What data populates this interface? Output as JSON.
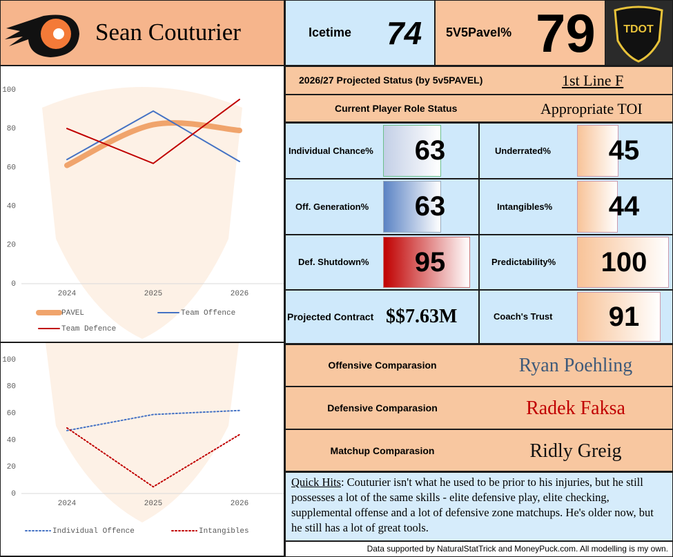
{
  "header": {
    "player": "Sean Couturier",
    "logo_text": "TDOT"
  },
  "icetime": {
    "label": "Icetime",
    "value": 74
  },
  "pavel": {
    "label": "5V5Pavel%",
    "value": 79
  },
  "projected_status": {
    "label": "2026/27 Projected Status (by 5v5PAVEL)",
    "value": "1st Line F"
  },
  "role_status": {
    "label": "Current Player Role Status",
    "value": "Appropriate TOI"
  },
  "metrics": {
    "bar_scale": [
      0,
      100
    ],
    "items": [
      {
        "label": "Individual Chance%",
        "value": 63
      },
      {
        "label": "Off. Generation%",
        "value": 63
      },
      {
        "label": "Def. Shutdown%",
        "value": 95
      },
      {
        "label": "Underrated%",
        "value": 45
      },
      {
        "label": "Intangibles%",
        "value": 44
      },
      {
        "label": "Predictability%",
        "value": 100
      },
      {
        "label": "Coach's Trust",
        "value": 91
      }
    ]
  },
  "contract": {
    "label": "Projected Contract",
    "value": "$$7.63M"
  },
  "comparisons": [
    {
      "label": "Offensive Comparasion",
      "player": "Ryan Poehling"
    },
    {
      "label": "Defensive Comparasion",
      "player": "Radek Faksa"
    },
    {
      "label": "Matchup Comparasion",
      "player": "Ridly Greig"
    }
  ],
  "quick_hits": {
    "label": "Quick Hits",
    "text": ": Couturier isn't what he used to be prior to his injuries, but he still possesses a lot of the same skills - elite defensive play, elite checking, supplemental offense and a lot of defensive zone matchups. He's older now, but he still has a lot of great tools."
  },
  "footer": "Data supported by NaturalStatTrick and MoneyPuck.com. All modelling is my own.",
  "chart_data": [
    {
      "type": "line",
      "categories": [
        "2024",
        "2025",
        "2026"
      ],
      "ylim": [
        0,
        100
      ],
      "yticks": [
        0,
        20,
        40,
        60,
        80,
        100
      ],
      "grid": false,
      "series": [
        {
          "name": "PAVEL",
          "color": "#f0a46c",
          "smooth": true,
          "values": [
            61,
            82,
            79
          ]
        },
        {
          "name": "Team Offence",
          "color": "#4472c4",
          "values": [
            64,
            89,
            63
          ]
        },
        {
          "name": "Team Defence",
          "color": "#c00000",
          "values": [
            80,
            62,
            95
          ]
        }
      ]
    },
    {
      "type": "line",
      "categories": [
        "2024",
        "2025",
        "2026"
      ],
      "ylim": [
        0,
        100
      ],
      "yticks": [
        0,
        20,
        40,
        60,
        80,
        100
      ],
      "grid": false,
      "series": [
        {
          "name": "Individual Offence",
          "color": "#4472c4",
          "dash": "dotted",
          "values": [
            47,
            59,
            62
          ]
        },
        {
          "name": "Intangibles",
          "color": "#c00000",
          "dash": "dotted",
          "values": [
            49,
            5,
            44
          ]
        }
      ]
    }
  ]
}
